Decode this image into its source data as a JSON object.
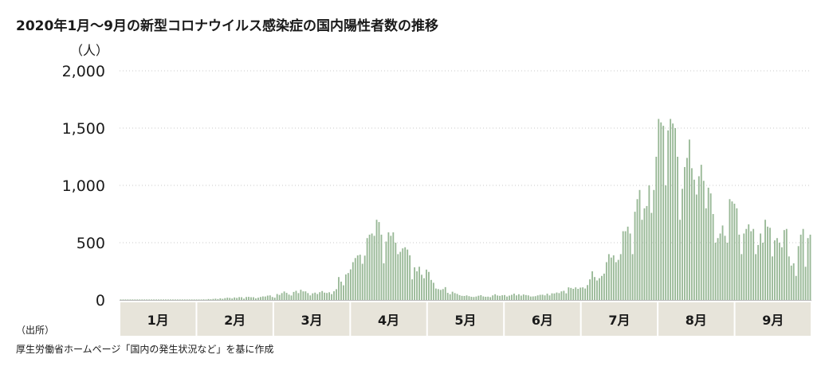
{
  "chart_data": {
    "type": "bar",
    "title": "2020年1月～9月の新型コロナウイルス感染症の国内陽性者数の推移",
    "ylabel": "（人）",
    "ylim": [
      0,
      2000
    ],
    "yticks": [
      {
        "value": 2000,
        "label": "2,000"
      },
      {
        "value": 1500,
        "label": "1,500"
      },
      {
        "value": 1000,
        "label": "1,000"
      },
      {
        "value": 500,
        "label": "500"
      },
      {
        "value": 0,
        "label": "0"
      }
    ],
    "grid": true,
    "months": [
      "1月",
      "2月",
      "3月",
      "4月",
      "5月",
      "6月",
      "7月",
      "8月",
      "9月"
    ],
    "bar_color": "#98b896",
    "month_band_color": "#e7e4da",
    "values": [
      0,
      0,
      0,
      0,
      0,
      0,
      0,
      0,
      0,
      0,
      0,
      0,
      0,
      0,
      1,
      0,
      0,
      0,
      0,
      0,
      0,
      0,
      0,
      0,
      0,
      0,
      0,
      0,
      0,
      1,
      2,
      1,
      3,
      2,
      3,
      5,
      4,
      8,
      6,
      9,
      11,
      8,
      14,
      10,
      16,
      20,
      18,
      13,
      22,
      18,
      25,
      24,
      12,
      26,
      27,
      24,
      24,
      14,
      20,
      26,
      31,
      30,
      38,
      40,
      26,
      20,
      52,
      44,
      60,
      74,
      62,
      47,
      39,
      70,
      80,
      60,
      89,
      75,
      75,
      60,
      40,
      58,
      64,
      52,
      68,
      78,
      64,
      61,
      67,
      51,
      76,
      94,
      200,
      160,
      128,
      223,
      235,
      267,
      330,
      366,
      389,
      395,
      316,
      387,
      540,
      570,
      580,
      560,
      700,
      680,
      570,
      320,
      510,
      590,
      560,
      590,
      500,
      400,
      420,
      450,
      460,
      440,
      390,
      180,
      285,
      250,
      290,
      220,
      190,
      265,
      245,
      175,
      150,
      100,
      95,
      88,
      95,
      112,
      62,
      50,
      72,
      60,
      53,
      42,
      36,
      35,
      40,
      33,
      28,
      26,
      30,
      37,
      42,
      31,
      28,
      29,
      25,
      40,
      50,
      39,
      36,
      41,
      43,
      30,
      38,
      45,
      55,
      40,
      50,
      38,
      48,
      43,
      40,
      30,
      31,
      33,
      40,
      45,
      46,
      40,
      55,
      40,
      58,
      57,
      65,
      60,
      75,
      80,
      58,
      110,
      105,
      97,
      110,
      97,
      108,
      110,
      100,
      130,
      180,
      250,
      200,
      170,
      190,
      210,
      230,
      330,
      400,
      370,
      390,
      330,
      350,
      400,
      600,
      600,
      640,
      580,
      400,
      770,
      880,
      960,
      700,
      800,
      820,
      1000,
      760,
      960,
      1250,
      1580,
      1550,
      1520,
      1000,
      1480,
      1580,
      1540,
      1500,
      1250,
      700,
      970,
      1160,
      1240,
      1400,
      1150,
      1050,
      920,
      1080,
      1180,
      1040,
      800,
      980,
      930,
      750,
      500,
      540,
      580,
      650,
      560,
      500,
      880,
      860,
      840,
      800,
      570,
      400,
      580,
      620,
      660,
      600,
      620,
      400,
      480,
      580,
      500,
      700,
      640,
      630,
      380,
      520,
      540,
      500,
      460,
      610,
      620,
      380,
      300,
      320,
      210,
      470,
      570,
      620,
      290,
      540,
      570
    ]
  },
  "source": {
    "label": "（出所）",
    "text": "厚生労働省ホームページ「国内の発生状況など」を基に作成"
  }
}
